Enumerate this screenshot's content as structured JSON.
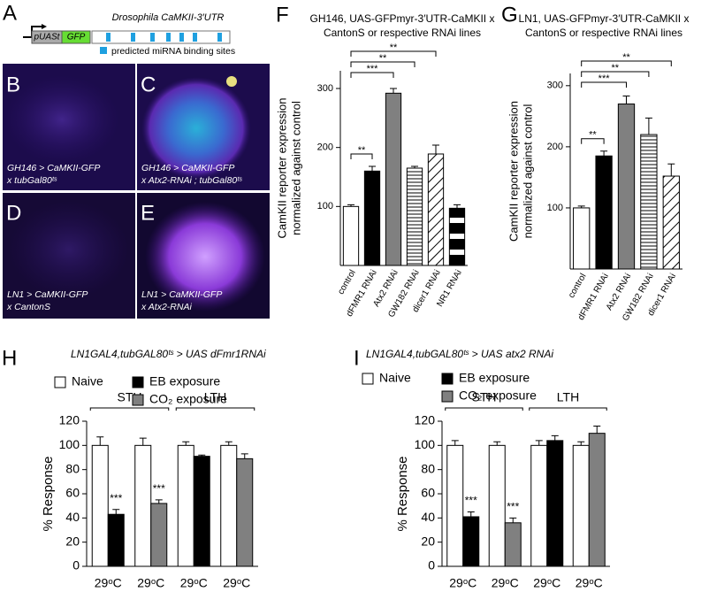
{
  "figure": {
    "panel_letters": [
      "A",
      "B",
      "C",
      "D",
      "E",
      "F",
      "G",
      "H",
      "I"
    ],
    "diagram": {
      "title": "Drosophila CaMKII-3′UTR",
      "promoter": "pUASt",
      "reporter": "GFP",
      "legend": "predicted miRNA binding sites"
    },
    "images": [
      {
        "lines": [
          "GH146 > CaMKII-GFP",
          "x tubGal80ᵗˢ"
        ]
      },
      {
        "lines": [
          "GH146 > CaMKII-GFP",
          "x Atx2-RNAi ; tubGal80ᵗˢ"
        ]
      },
      {
        "lines": [
          "LN1 > CaMKII-GFP",
          "x CantonS"
        ]
      },
      {
        "lines": [
          "LN1 > CaMKII-GFP",
          "x Atx2-RNAi"
        ]
      }
    ]
  },
  "chart_data": [
    {
      "type": "bar",
      "title": [
        "GH146, UAS-GFPmyr-3′UTR-CaMKII x",
        "CantonS or respective RNAi lines"
      ],
      "y_label": [
        "CamKII reporter expression",
        "normalized against control"
      ],
      "categories": [
        "control",
        "dFMR1 RNAi",
        "Atx2 RNAi",
        "GW182 RNAi",
        "dicer1 RNAi",
        "NR1 RNAi"
      ],
      "values": [
        100,
        160,
        292,
        165,
        189,
        97
      ],
      "errors": [
        3,
        8,
        8,
        3,
        15,
        6
      ],
      "fills": [
        "#ffffff",
        "#000000",
        "#808080",
        "hlines",
        "diag",
        "bands"
      ],
      "ylim": [
        0,
        330
      ],
      "yticks": [
        100,
        200,
        300
      ],
      "brackets": [
        {
          "label": "**",
          "from": "control",
          "to": "dFMR1 RNAi"
        },
        {
          "label": "***",
          "from": "control",
          "to": "Atx2 RNAi"
        },
        {
          "label": "**",
          "from": "control",
          "to": "GW182 RNAi"
        },
        {
          "label": "**",
          "from": "control",
          "to": "dicer1 RNAi"
        }
      ]
    },
    {
      "type": "bar",
      "title": [
        "LN1, UAS-GFPmyr-3′UTR-CaMKII x",
        "CantonS or respective RNAi lines"
      ],
      "y_label": [
        "CamKII reporter expression",
        "normalized against control"
      ],
      "categories": [
        "control",
        "dFMR1 RNAi",
        "Atx2 RNAi",
        "GW182 RNAi",
        "dicer1 RNAi"
      ],
      "values": [
        100,
        185,
        270,
        220,
        152
      ],
      "errors": [
        3,
        8,
        13,
        27,
        20
      ],
      "fills": [
        "#ffffff",
        "#000000",
        "#808080",
        "hlines",
        "diag"
      ],
      "ylim": [
        0,
        320
      ],
      "yticks": [
        100,
        200,
        300
      ],
      "brackets": [
        {
          "label": "**",
          "from": "control",
          "to": "dFMR1 RNAi"
        },
        {
          "label": "***",
          "from": "control",
          "to": "Atx2 RNAi"
        },
        {
          "label": "**",
          "from": "control",
          "to": "GW182 RNAi"
        },
        {
          "label": "**",
          "from": "control",
          "to": "dicer1 RNAi"
        }
      ]
    },
    {
      "type": "bar",
      "title": "LN1GAL4,tubGAL80ᵗˢ > UAS dFmr1RNAi",
      "y_label": "% Response",
      "categories": [
        "29ᵒC",
        "29ᵒC",
        "29ᵒC",
        "29ᵒC"
      ],
      "series": [
        {
          "name": "Naive",
          "color": "#ffffff",
          "values": [
            100,
            100,
            100,
            100
          ],
          "errors": [
            7,
            6,
            3,
            3
          ],
          "significance": [
            null,
            null,
            null,
            null
          ]
        },
        {
          "name": "EB exposure",
          "color": "#000000",
          "values": [
            43,
            null,
            91,
            null
          ],
          "errors": [
            4,
            null,
            1,
            null
          ],
          "significance": [
            "***",
            null,
            null,
            null
          ]
        },
        {
          "name": "CO₂ exposure",
          "color": "#808080",
          "values": [
            null,
            52,
            null,
            89
          ],
          "errors": [
            null,
            3,
            null,
            4
          ],
          "significance": [
            null,
            "***",
            null,
            null
          ]
        }
      ],
      "groups": [
        {
          "label": "STH",
          "count": 2
        },
        {
          "label": "LTH",
          "count": 2
        }
      ],
      "ylim": [
        0,
        120
      ],
      "yticks": [
        0,
        20,
        40,
        60,
        80,
        100,
        120
      ]
    },
    {
      "type": "bar",
      "title": "LN1GAL4,tubGAL80ᵗˢ > UAS atx2 RNAi",
      "y_label": "% Response",
      "categories": [
        "29ᵒC",
        "29ᵒC",
        "29ᵒC",
        "29ᵒC"
      ],
      "series": [
        {
          "name": "Naive",
          "color": "#ffffff",
          "values": [
            100,
            100,
            100,
            100
          ],
          "errors": [
            4,
            3,
            4,
            3
          ],
          "significance": [
            null,
            null,
            null,
            null
          ]
        },
        {
          "name": "EB exposure",
          "color": "#000000",
          "values": [
            41,
            null,
            104,
            null
          ],
          "errors": [
            4,
            null,
            4,
            null
          ],
          "significance": [
            "***",
            null,
            null,
            null
          ]
        },
        {
          "name": "CO₂ exposure",
          "color": "#808080",
          "values": [
            null,
            36,
            null,
            110
          ],
          "errors": [
            null,
            4,
            null,
            6
          ],
          "significance": [
            null,
            "***",
            null,
            null
          ]
        }
      ],
      "groups": [
        {
          "label": "STH",
          "count": 2
        },
        {
          "label": "LTH",
          "count": 2
        }
      ],
      "ylim": [
        0,
        120
      ],
      "yticks": [
        0,
        20,
        40,
        60,
        80,
        100,
        120
      ]
    }
  ]
}
